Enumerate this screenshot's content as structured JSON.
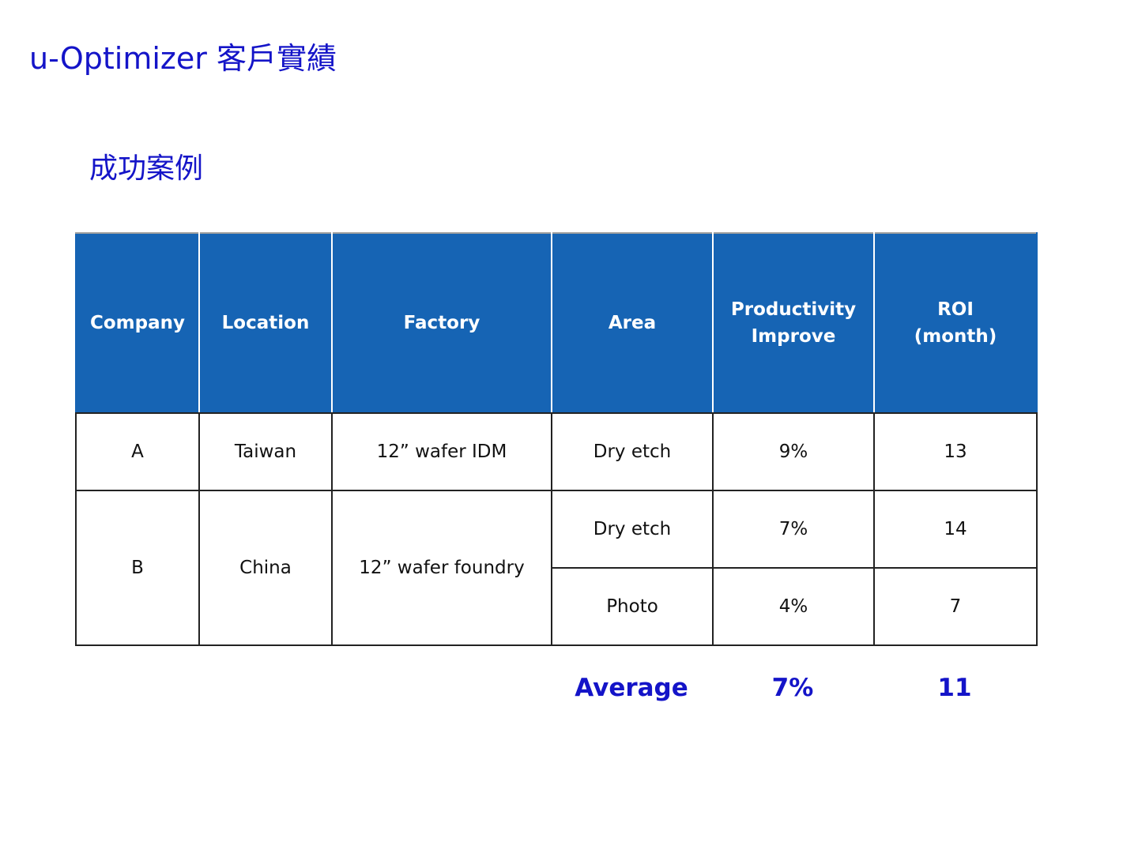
{
  "slide": {
    "title": "u-Optimizer 客戶實績",
    "section_title": "成功案例"
  },
  "table": {
    "headers": {
      "company": "Company",
      "location": "Location",
      "factory": "Factory",
      "area": "Area",
      "productivity_line1": "Productivity",
      "productivity_line2": "Improve",
      "roi_line1": "ROI",
      "roi_line2": "(month)"
    },
    "rows": [
      {
        "company": "A",
        "location": "Taiwan",
        "factory": "12” wafer IDM",
        "entries": [
          {
            "area": "Dry etch",
            "productivity": "9%",
            "roi": "13"
          }
        ]
      },
      {
        "company": "B",
        "location": "China",
        "factory": "12” wafer foundry",
        "entries": [
          {
            "area": "Dry etch",
            "productivity": "7%",
            "roi": "14"
          },
          {
            "area": "Photo",
            "productivity": "4%",
            "roi": "7"
          }
        ]
      }
    ]
  },
  "summary": {
    "label": "Average",
    "productivity": "7%",
    "roi": "11"
  }
}
